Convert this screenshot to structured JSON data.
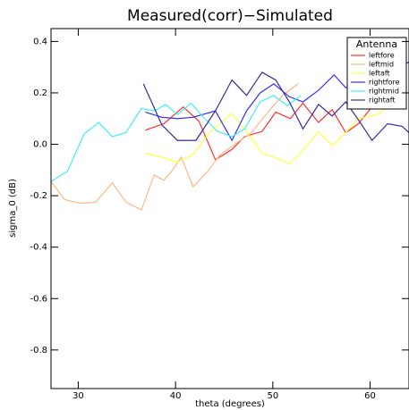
{
  "chart_data": {
    "type": "line",
    "title": "Measured(corr)−Simulated",
    "x_label": "theta (degrees)",
    "y_label": "sigma_0 (dB)",
    "legend_title": "Antenna",
    "legend": "upper right",
    "xlim": [
      27.2,
      64.0
    ],
    "ylim": [
      -0.95,
      0.45
    ],
    "xticks": [
      30,
      40,
      50,
      60
    ],
    "yticks": [
      0.4,
      0.2,
      {
        "value": 0,
        "label": "0.0"
      },
      -0.2,
      -0.4,
      -0.6,
      -0.8
    ],
    "series": [
      {
        "name": "leftfore",
        "color": "#ff3030",
        "x": [
          36.9,
          38.8,
          40.8,
          42.4,
          44.1,
          45.8,
          47.1,
          48.9,
          50.3,
          51.8,
          53.1,
          54.7,
          56.1,
          57.5,
          58.8,
          60.5,
          62.2
        ],
        "values": [
          0.055,
          0.08,
          0.145,
          0.09,
          -0.06,
          -0.02,
          0.03,
          0.05,
          0.125,
          0.1,
          0.16,
          0.085,
          0.135,
          0.045,
          0.08,
          0.16,
          0.245
        ]
      },
      {
        "name": "leftmid",
        "color": "#ffb888",
        "x": [
          27.2,
          28.6,
          30.3,
          31.8,
          33.5,
          34.9,
          36.5,
          37.8,
          38.8,
          39.5,
          40.6,
          41.8,
          43.2,
          44.6,
          45.9,
          47.8,
          49.6,
          51.0,
          52.6
        ],
        "values": [
          -0.145,
          -0.215,
          -0.23,
          -0.225,
          -0.15,
          -0.225,
          -0.255,
          -0.12,
          -0.14,
          -0.11,
          -0.05,
          -0.165,
          -0.11,
          -0.04,
          -0.005,
          0.045,
          0.13,
          0.19,
          0.235
        ]
      },
      {
        "name": "leftaft",
        "color": "#ffff40",
        "x": [
          36.9,
          38.6,
          40.2,
          41.8,
          43.6,
          45.8,
          47.3,
          48.9,
          50.1,
          51.7,
          53.1,
          54.7,
          56.1,
          57.5,
          58.8,
          60.7,
          62.5
        ],
        "values": [
          -0.035,
          -0.05,
          -0.07,
          -0.04,
          0.05,
          0.12,
          0.05,
          -0.035,
          -0.05,
          -0.075,
          -0.025,
          0.05,
          -0.005,
          0.045,
          0.1,
          0.115,
          0.165
        ]
      },
      {
        "name": "rightfore",
        "color": "#3030ff",
        "x": [
          36.9,
          38.6,
          40.2,
          41.8,
          44.1,
          45.8,
          47.3,
          48.7,
          50.1,
          51.7,
          53.1,
          54.7,
          56.3,
          57.5,
          58.8,
          60.7,
          62.5,
          64.0
        ],
        "values": [
          0.125,
          0.105,
          0.1,
          0.105,
          0.13,
          0.015,
          0.13,
          0.2,
          0.235,
          0.185,
          0.165,
          0.21,
          0.27,
          0.22,
          0.235,
          0.27,
          0.295,
          0.32
        ]
      },
      {
        "name": "rightmid",
        "color": "#40f0f0",
        "x": [
          27.2,
          28.9,
          30.6,
          32.1,
          33.5,
          34.9,
          36.5,
          37.8,
          39.0,
          40.2,
          41.6,
          43.0,
          44.3,
          45.8,
          47.1,
          48.7,
          50.1,
          51.5,
          52.9
        ],
        "values": [
          -0.145,
          -0.105,
          0.04,
          0.085,
          0.03,
          0.045,
          0.14,
          0.13,
          0.155,
          0.115,
          0.16,
          0.1,
          0.05,
          0.03,
          0.06,
          0.165,
          0.19,
          0.15,
          0.19
        ]
      },
      {
        "name": "rightaft",
        "color": "#3a2a9a",
        "x": [
          36.7,
          38.6,
          40.2,
          42.1,
          44.1,
          45.8,
          47.3,
          48.9,
          50.3,
          51.7,
          53.1,
          54.7,
          56.1,
          57.5,
          58.8,
          60.2,
          61.8,
          63.3,
          64.0
        ],
        "values": [
          0.235,
          0.075,
          0.015,
          0.015,
          0.13,
          0.25,
          0.19,
          0.28,
          0.25,
          0.165,
          0.06,
          0.155,
          0.11,
          0.165,
          0.095,
          0.015,
          0.08,
          0.07,
          0.045
        ]
      }
    ]
  }
}
